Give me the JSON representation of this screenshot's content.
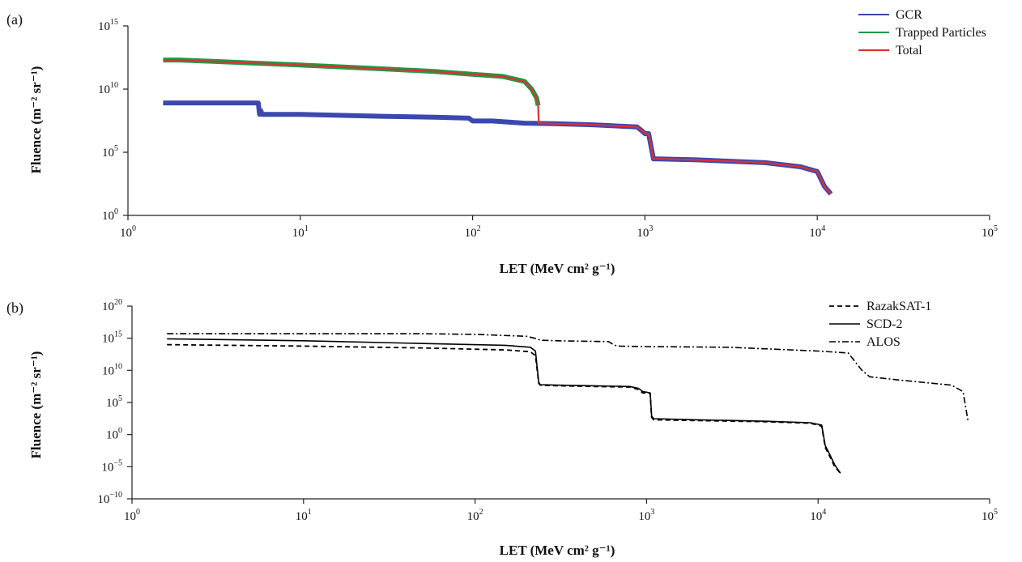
{
  "chart_data": [
    {
      "type": "line",
      "panel_label": "(a)",
      "xlabel": "LET (MeV cm² g⁻¹)",
      "ylabel": "Fluence (m⁻² sr⁻¹)",
      "x_scale": "log",
      "y_scale": "log",
      "xlim": [
        1,
        100000
      ],
      "ylim": [
        1,
        1000000000000000
      ],
      "x_ticks": [
        {
          "base": "10",
          "exp": "0"
        },
        {
          "base": "10",
          "exp": "1"
        },
        {
          "base": "10",
          "exp": "2"
        },
        {
          "base": "10",
          "exp": "3"
        },
        {
          "base": "10",
          "exp": "4"
        },
        {
          "base": "10",
          "exp": "5"
        }
      ],
      "y_ticks": [
        {
          "base": "10",
          "exp": "0"
        },
        {
          "base": "10",
          "exp": "5"
        },
        {
          "base": "10",
          "exp": "10"
        },
        {
          "base": "10",
          "exp": "15"
        }
      ],
      "grid": false,
      "legend_position": "top-right",
      "series": [
        {
          "name": "GCR",
          "color": "#3a48b0",
          "style": "thick-solid",
          "x": [
            1.6,
            5.7,
            5.8,
            5.9,
            6.0,
            10,
            30,
            60,
            95,
            100,
            130,
            200,
            300,
            500,
            900,
            960,
            1000,
            1050,
            1120,
            1200,
            2000,
            5000,
            8000,
            10000,
            11000,
            12000
          ],
          "y": [
            800000000,
            800000000,
            100000000,
            200000000,
            100000000,
            100000000,
            70000000,
            60000000,
            50000000,
            30000000,
            30000000,
            20000000,
            18000000,
            15000000,
            10000000,
            5000000,
            3000000,
            3000000,
            30000,
            30000,
            25000,
            15000,
            7000,
            3000,
            200,
            50
          ]
        },
        {
          "name": "Trapped Particles",
          "color": "#1e9a46",
          "style": "thick-solid",
          "x": [
            1.6,
            2,
            5,
            10,
            30,
            60,
            100,
            150,
            200,
            220,
            235,
            240
          ],
          "y": [
            2000000000000,
            2000000000000,
            1200000000000,
            800000000000,
            400000000000,
            250000000000,
            150000000000,
            100000000000,
            40000000000,
            10000000000,
            2000000000,
            500000000
          ]
        },
        {
          "name": "Total",
          "color": "#e03030",
          "style": "thin-solid",
          "x": [
            1.6,
            2,
            5,
            10,
            30,
            60,
            100,
            150,
            200,
            220,
            235,
            240,
            242,
            300,
            500,
            900,
            960,
            1000,
            1050,
            1120,
            1200,
            2000,
            5000,
            8000,
            10000,
            11000,
            12000
          ],
          "y": [
            2000000000000,
            2000000000000,
            1200000000000,
            800000000000,
            400000000000,
            250000000000,
            150000000000,
            100000000000,
            40000000000,
            10000000000,
            2000000000,
            500000000,
            20000000,
            18000000,
            15000000,
            10000000,
            5000000,
            3000000,
            3000000,
            30000,
            30000,
            25000,
            15000,
            7000,
            3000,
            200,
            50
          ]
        }
      ]
    },
    {
      "type": "line",
      "panel_label": "(b)",
      "xlabel": "LET (MeV cm² g⁻¹)",
      "ylabel": "Fluence (m⁻² sr⁻¹)",
      "x_scale": "log",
      "y_scale": "log",
      "xlim": [
        1,
        100000
      ],
      "ylim": [
        1e-10,
        1e+20
      ],
      "x_ticks": [
        {
          "base": "10",
          "exp": "0"
        },
        {
          "base": "10",
          "exp": "1"
        },
        {
          "base": "10",
          "exp": "2"
        },
        {
          "base": "10",
          "exp": "3"
        },
        {
          "base": "10",
          "exp": "4"
        },
        {
          "base": "10",
          "exp": "5"
        }
      ],
      "y_ticks": [
        {
          "base": "10",
          "exp": "−10"
        },
        {
          "base": "10",
          "exp": "−5"
        },
        {
          "base": "10",
          "exp": "0"
        },
        {
          "base": "10",
          "exp": "5"
        },
        {
          "base": "10",
          "exp": "10"
        },
        {
          "base": "10",
          "exp": "15"
        },
        {
          "base": "10",
          "exp": "20"
        }
      ],
      "grid": false,
      "legend_position": "top-right",
      "series": [
        {
          "name": "RazakSAT-1",
          "color": "#000000",
          "style": "dashed",
          "x": [
            1.6,
            10,
            50,
            150,
            210,
            225,
            235,
            240,
            300,
            500,
            800,
            900,
            950,
            1000,
            1050,
            1070,
            1100,
            2000,
            5000,
            9000,
            10500,
            11000,
            11500,
            12500,
            13500
          ],
          "y": [
            100000000000000,
            60000000000000,
            30000000000000,
            15000000000000,
            8000000000000,
            2000000000000,
            100000000,
            50000000,
            40000000,
            30000000,
            25000000,
            10000000,
            3000000,
            3000000,
            2500000,
            500,
            200,
            150,
            100,
            60,
            20,
            0.01,
            0.001,
            1e-05,
            1e-06
          ]
        },
        {
          "name": "SCD-2",
          "color": "#000000",
          "style": "solid",
          "x": [
            1.6,
            10,
            50,
            150,
            210,
            225,
            235,
            240,
            300,
            500,
            800,
            900,
            950,
            1000,
            1050,
            1070,
            1100,
            2000,
            5000,
            9000,
            10500,
            11000,
            11500,
            12500,
            13500
          ],
          "y": [
            800000000000000,
            400000000000000,
            150000000000000,
            80000000000000,
            40000000000000,
            10000000000000,
            150000000,
            60000000,
            50000000,
            40000000,
            30000000,
            15000000,
            5000000,
            4000000,
            3000000,
            800,
            300,
            200,
            120,
            70,
            30,
            0.02,
            0.002,
            2e-05,
            1e-06
          ]
        },
        {
          "name": "ALOS",
          "color": "#000000",
          "style": "dash-dot",
          "x": [
            1.6,
            10,
            50,
            100,
            200,
            230,
            240,
            300,
            600,
            650,
            700,
            1000,
            3000,
            10000,
            15000,
            18000,
            20000,
            30000,
            60000,
            70000,
            75000
          ],
          "y": [
            5000000000000000,
            5000000000000000,
            5000000000000000,
            4000000000000000,
            2000000000000000,
            800000000000000,
            500000000000000,
            400000000000000,
            300000000000000,
            80000000000000,
            60000000000000,
            50000000000000,
            40000000000000,
            10000000000000,
            5000000000000,
            10000000000,
            1000000000,
            300000000,
            50000000,
            5000000,
            100
          ]
        }
      ]
    }
  ]
}
